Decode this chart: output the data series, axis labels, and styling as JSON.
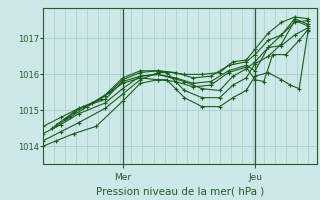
{
  "title": "",
  "xlabel": "Pression niveau de la mer( hPa )",
  "ylabel": "",
  "bg_color": "#cce8e8",
  "grid_color": "#aacccc",
  "line_color": "#1a5c1a",
  "marker_color": "#1a5c1a",
  "axis_color": "#2a5a2a",
  "xlim": [
    0,
    62
  ],
  "ylim": [
    1013.5,
    1017.85
  ],
  "yticks": [
    1014,
    1015,
    1016,
    1017
  ],
  "mer_x": 18,
  "jeu_x": 48,
  "lines": [
    [
      0,
      1014.0,
      3,
      1014.15,
      7,
      1014.35,
      12,
      1014.55,
      18,
      1015.25,
      22,
      1015.75,
      26,
      1015.85,
      28,
      1015.85,
      30,
      1015.6,
      32,
      1015.35,
      36,
      1015.1,
      40,
      1015.1,
      43,
      1015.35,
      46,
      1015.55,
      48,
      1015.95,
      51,
      1016.05,
      54,
      1015.85,
      56,
      1015.7,
      58,
      1015.6,
      60,
      1017.2
    ],
    [
      0,
      1014.15,
      4,
      1014.4,
      8,
      1014.65,
      14,
      1015.05,
      18,
      1015.45,
      22,
      1015.85,
      26,
      1016.05,
      28,
      1016.05,
      30,
      1015.8,
      32,
      1015.55,
      36,
      1015.35,
      40,
      1015.35,
      43,
      1015.7,
      46,
      1015.9,
      48,
      1016.3,
      51,
      1016.5,
      54,
      1016.85,
      57,
      1017.5,
      60,
      1017.35
    ],
    [
      0,
      1014.35,
      4,
      1014.6,
      8,
      1014.9,
      14,
      1015.2,
      18,
      1015.6,
      22,
      1015.95,
      26,
      1016.0,
      32,
      1015.8,
      36,
      1015.6,
      40,
      1015.55,
      43,
      1015.95,
      46,
      1016.15,
      48,
      1016.35,
      51,
      1016.75,
      54,
      1017.1,
      57,
      1017.55,
      60,
      1017.4
    ],
    [
      2,
      1014.5,
      6,
      1014.8,
      10,
      1015.1,
      14,
      1015.4,
      18,
      1015.75,
      22,
      1015.9,
      26,
      1015.85,
      30,
      1015.8,
      34,
      1015.65,
      38,
      1015.7,
      42,
      1016.05,
      46,
      1016.2,
      48,
      1015.85,
      50,
      1015.8,
      52,
      1016.55,
      55,
      1016.55,
      58,
      1016.95,
      60,
      1017.25
    ],
    [
      0,
      1014.55,
      4,
      1014.8,
      8,
      1015.05,
      14,
      1015.3,
      18,
      1015.8,
      22,
      1015.95,
      26,
      1016.0,
      30,
      1015.9,
      34,
      1015.75,
      38,
      1015.8,
      42,
      1016.1,
      46,
      1016.25,
      48,
      1016.1,
      51,
      1016.75,
      54,
      1016.8,
      57,
      1017.1,
      60,
      1017.3
    ],
    [
      3,
      1014.6,
      7,
      1014.95,
      11,
      1015.2,
      15,
      1015.5,
      18,
      1015.85,
      22,
      1016.05,
      26,
      1016.1,
      30,
      1016.05,
      34,
      1015.9,
      38,
      1015.95,
      42,
      1016.25,
      46,
      1016.35,
      48,
      1016.55,
      51,
      1016.95,
      54,
      1017.1,
      57,
      1017.45,
      60,
      1017.5
    ],
    [
      5,
      1014.75,
      9,
      1015.1,
      13,
      1015.3,
      18,
      1015.9,
      22,
      1016.1,
      26,
      1016.1,
      32,
      1016.0,
      36,
      1016.0,
      40,
      1016.05,
      43,
      1016.35,
      46,
      1016.4,
      48,
      1016.7,
      51,
      1017.15,
      54,
      1017.45,
      57,
      1017.6,
      60,
      1017.55
    ]
  ]
}
